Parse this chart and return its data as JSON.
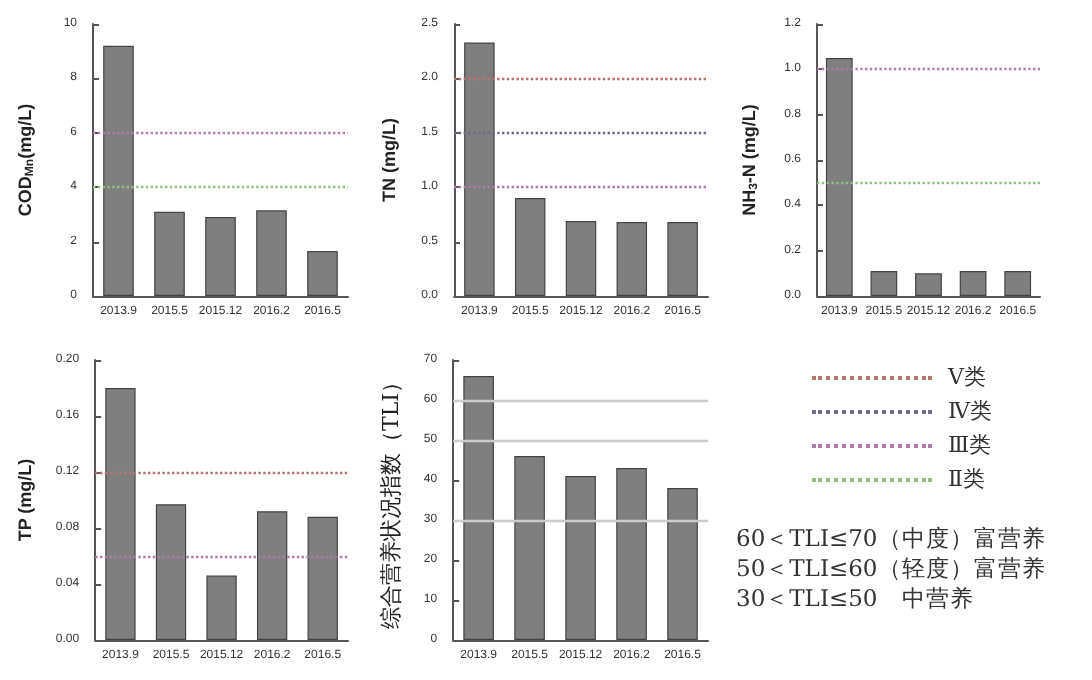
{
  "chart_data": [
    {
      "type": "bar",
      "ylabel": "COD$_{Mn}$(mg/L)",
      "categories": [
        "2013.9",
        "2015.5",
        "2015.12",
        "2016.2",
        "2016.5"
      ],
      "values": [
        9.2,
        3.1,
        2.9,
        3.15,
        1.65
      ],
      "color": "#7f7f7f",
      "ylim": [
        0,
        10
      ],
      "yticks": [
        0,
        2,
        4,
        6,
        8,
        10
      ],
      "grid": false,
      "ref_lines": [
        {
          "axis": "y",
          "value": 6,
          "color": "#b07aa8",
          "line_style": "dotted"
        },
        {
          "axis": "y",
          "value": 4,
          "color": "#8fbf7f",
          "line_style": "dotted"
        }
      ]
    },
    {
      "type": "bar",
      "ylabel": "TN (mg/L)",
      "categories": [
        "2013.9",
        "2015.5",
        "2015.12",
        "2016.2",
        "2016.5"
      ],
      "values": [
        2.33,
        0.9,
        0.69,
        0.68,
        0.68
      ],
      "color": "#7f7f7f",
      "ylim": [
        0,
        2.5
      ],
      "yticks": [
        {
          "value": 0,
          "label": "0.0"
        },
        {
          "value": 0.5,
          "label": "0.5"
        },
        {
          "value": 1,
          "label": "1.0"
        },
        {
          "value": 1.5,
          "label": "1.5"
        },
        {
          "value": 2,
          "label": "2.0"
        },
        {
          "value": 2.5,
          "label": "2.5"
        }
      ],
      "grid": false,
      "ref_lines": [
        {
          "axis": "y",
          "value": 2,
          "color": "#b5746c",
          "line_style": "dotted"
        },
        {
          "axis": "y",
          "value": 1.5,
          "color": "#6b6b8a",
          "line_style": "dotted"
        },
        {
          "axis": "y",
          "value": 1,
          "color": "#b07aa8",
          "line_style": "dotted"
        }
      ]
    },
    {
      "type": "bar",
      "ylabel": "NH$_{3}$-N (mg/L)",
      "categories": [
        "2013.9",
        "2015.5",
        "2015.12",
        "2016.2",
        "2016.5"
      ],
      "values": [
        1.05,
        0.11,
        0.1,
        0.11,
        0.11
      ],
      "color": "#7f7f7f",
      "ylim": [
        0,
        1.2
      ],
      "yticks": [
        {
          "value": 0,
          "label": "0.0"
        },
        {
          "value": 0.2,
          "label": "0.2"
        },
        {
          "value": 0.4,
          "label": "0.4"
        },
        {
          "value": 0.6,
          "label": "0.6"
        },
        {
          "value": 0.8,
          "label": "0.8"
        },
        {
          "value": 1,
          "label": "1.0"
        },
        {
          "value": 1.2,
          "label": "1.2"
        }
      ],
      "grid": false,
      "ref_lines": [
        {
          "axis": "y",
          "value": 1,
          "color": "#b07aa8",
          "line_style": "dotted"
        },
        {
          "axis": "y",
          "value": 0.5,
          "color": "#8fbf7f",
          "line_style": "dotted"
        }
      ]
    },
    {
      "type": "bar",
      "ylabel": "TP (mg/L)",
      "categories": [
        "2013.9",
        "2015.5",
        "2015.12",
        "2016.2",
        "2016.5"
      ],
      "values": [
        0.18,
        0.097,
        0.046,
        0.092,
        0.088
      ],
      "color": "#7f7f7f",
      "ylim": [
        0,
        0.2
      ],
      "yticks": [
        {
          "value": 0,
          "label": "0.00"
        },
        {
          "value": 0.04,
          "label": "0.04"
        },
        {
          "value": 0.08,
          "label": "0.08"
        },
        {
          "value": 0.12,
          "label": "0.12"
        },
        {
          "value": 0.16,
          "label": "0.16"
        },
        {
          "value": 0.2,
          "label": "0.20"
        }
      ],
      "grid": false,
      "ref_lines": [
        {
          "axis": "y",
          "value": 0.12,
          "color": "#b5746c",
          "line_style": "dotted"
        },
        {
          "axis": "y",
          "value": 0.06,
          "color": "#b07aa8",
          "line_style": "dotted"
        }
      ]
    },
    {
      "type": "bar",
      "ylabel": "综合营养状况指数（TLI）",
      "categories": [
        "2013.9",
        "2015.5",
        "2015.12",
        "2016.2",
        "2016.5"
      ],
      "values": [
        66,
        46,
        41,
        43,
        38
      ],
      "color": "#7f7f7f",
      "ylim": [
        0,
        70
      ],
      "yticks": [
        0,
        10,
        20,
        30,
        40,
        50,
        60,
        70
      ],
      "grid": false,
      "ref_lines": [
        {
          "axis": "y",
          "value": 60,
          "color": "#cccccc",
          "line_style": "solid"
        },
        {
          "axis": "y",
          "value": 50,
          "color": "#cccccc",
          "line_style": "solid"
        },
        {
          "axis": "y",
          "value": 30,
          "color": "#cccccc",
          "line_style": "solid"
        }
      ]
    },
    {
      "type": "other",
      "annotations": [
        "Ⅴ类",
        "Ⅳ类",
        "Ⅲ类",
        "Ⅱ类",
        "60＜TLI≤70（中度）富营养",
        "50＜TLI≤60（轻度）富营养",
        "30＜TLI≤50　中营养"
      ]
    }
  ]
}
